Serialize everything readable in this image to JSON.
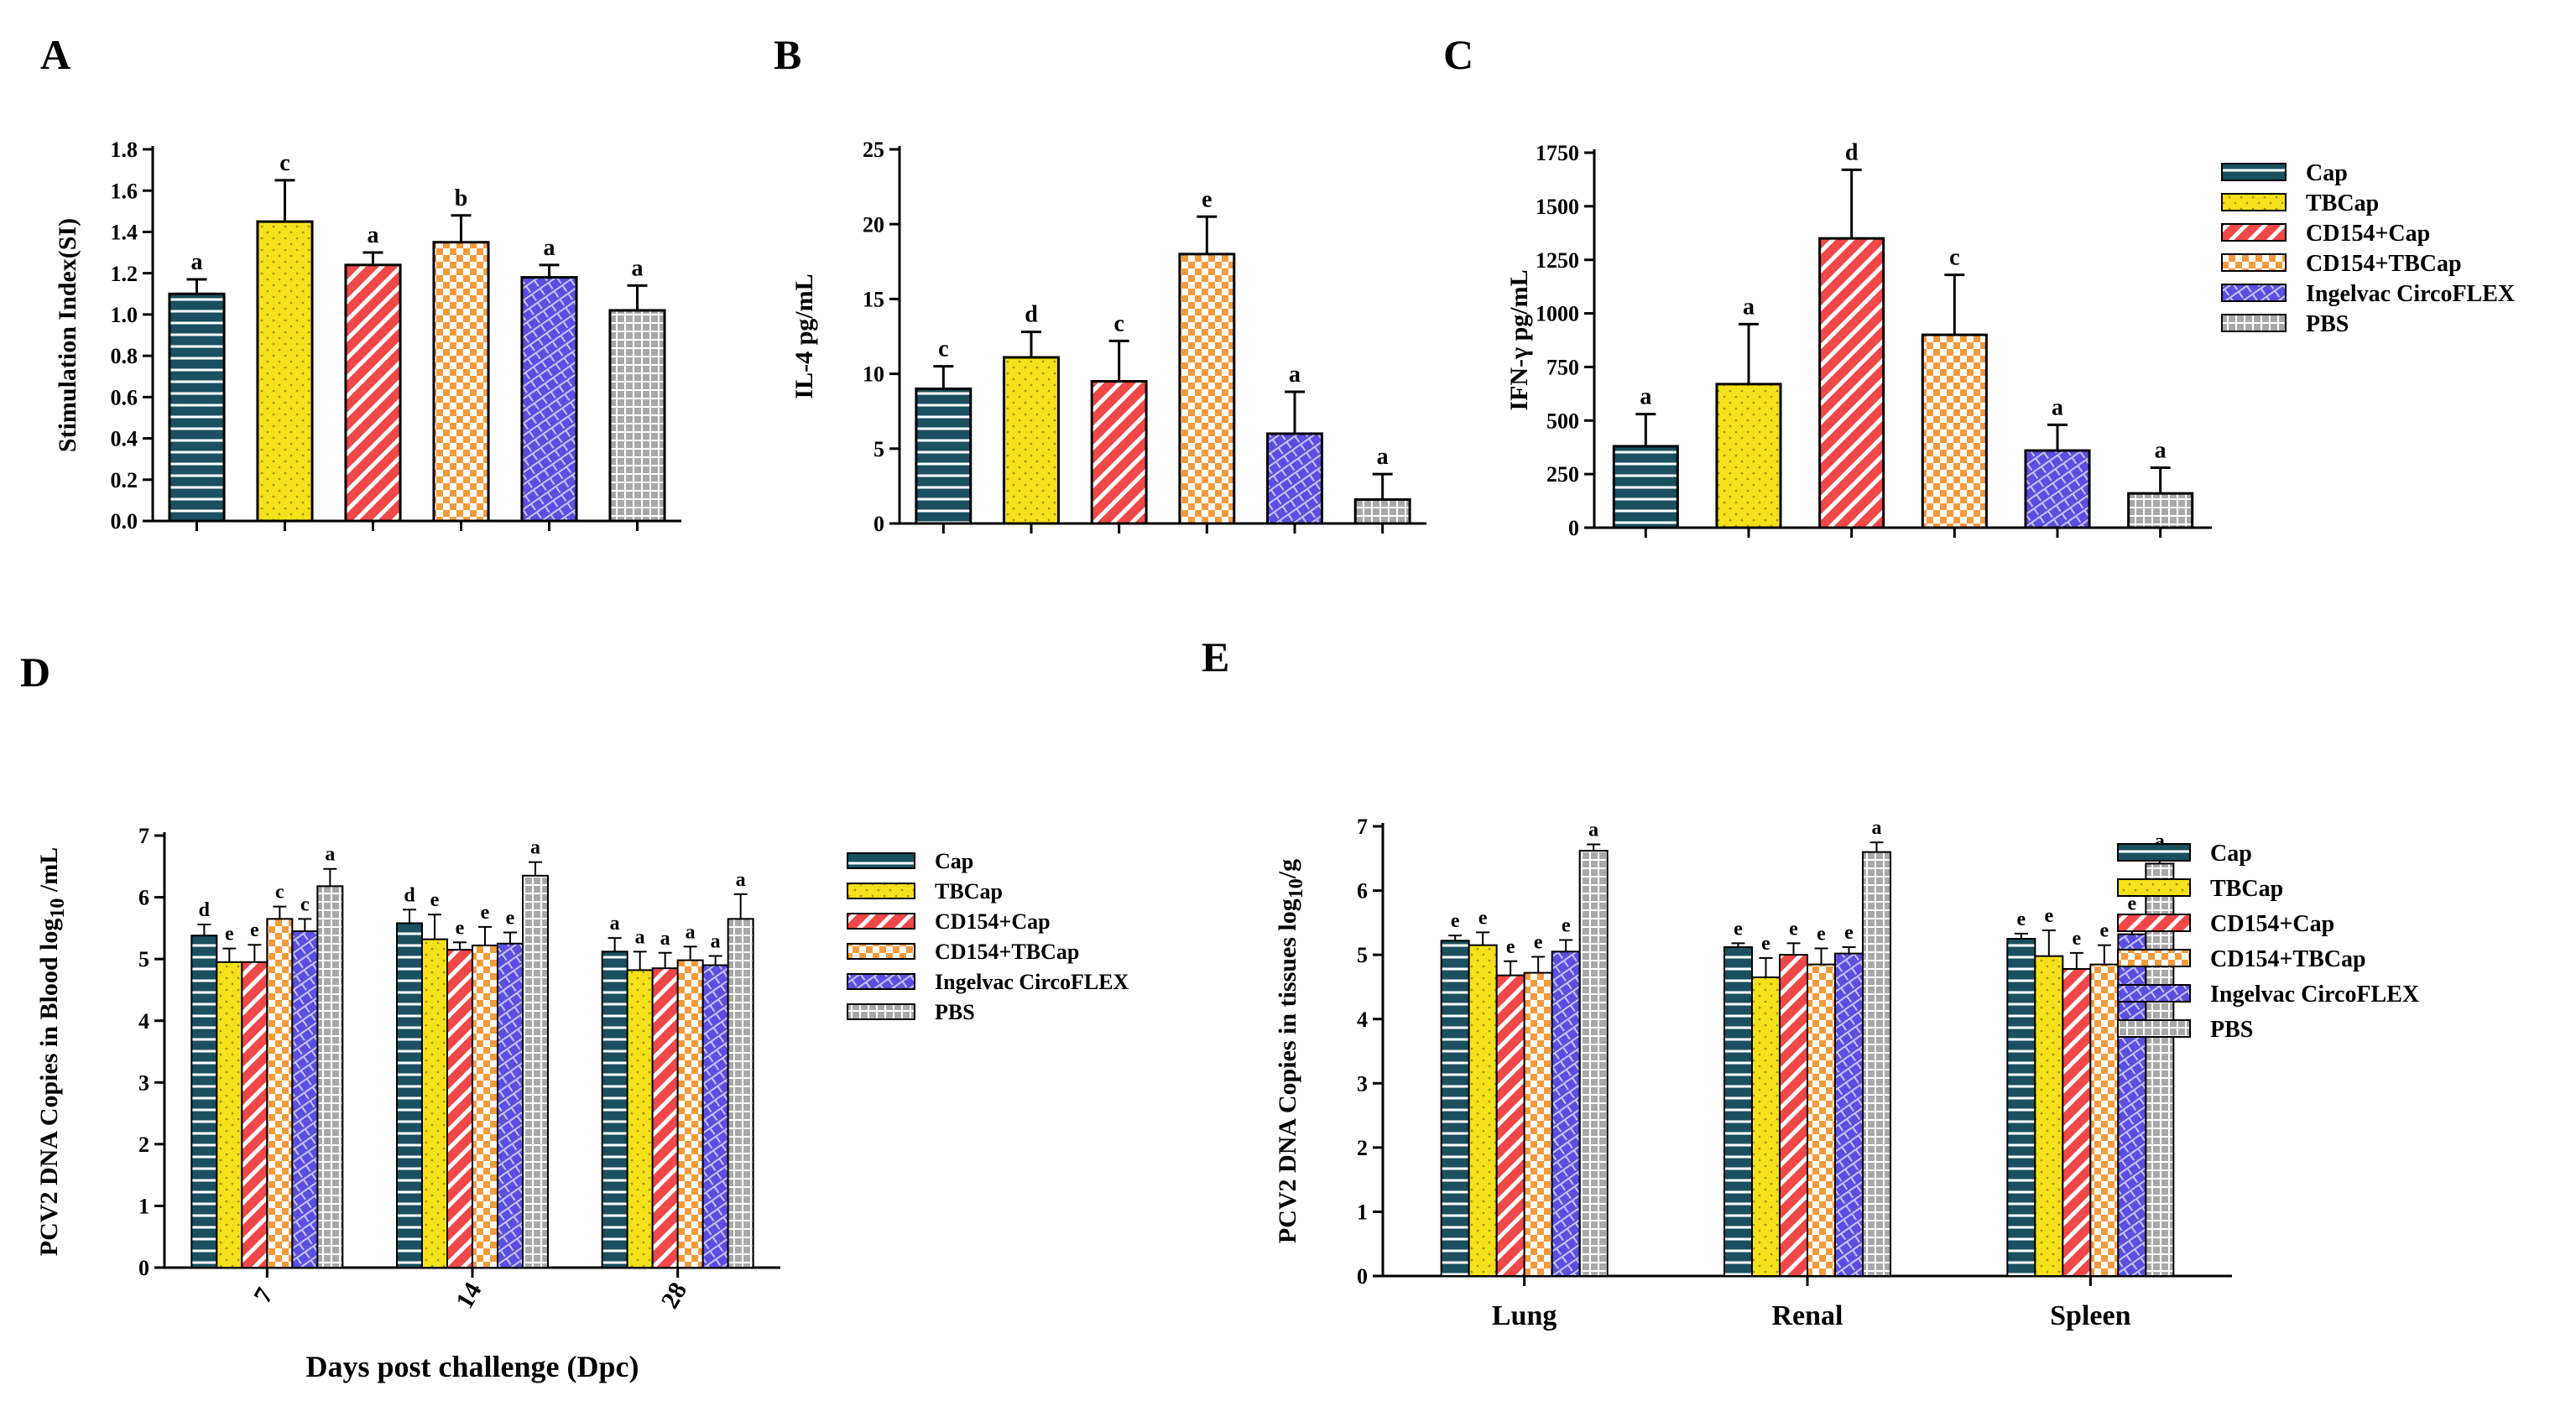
{
  "colors": {
    "Cap": "#1a5060",
    "TBCap": "#f5e11a",
    "CD154+Cap": "#f04848",
    "CD154+TBCap": "#f59a3a",
    "Ingelvac CircoFLEX": "#5a4fe0",
    "PBS": "#a8a8a8"
  },
  "chart_data": [
    {
      "panel": "A",
      "type": "bar",
      "ylabel": "Stimulation Index(SI)",
      "ylim": [
        0,
        1.8
      ],
      "yticks": [
        "0.0",
        "0.2",
        "0.4",
        "0.6",
        "0.8",
        "1.0",
        "1.2",
        "1.4",
        "1.6",
        "1.8"
      ],
      "categories": [
        "Cap",
        "TBCap",
        "CD154+Cap",
        "CD154+TBCap",
        "Ingelvac CircoFLEX",
        "PBS"
      ],
      "values": [
        1.1,
        1.45,
        1.24,
        1.35,
        1.18,
        1.02
      ],
      "errors": [
        0.07,
        0.2,
        0.06,
        0.13,
        0.06,
        0.12
      ],
      "letters": [
        "a",
        "c",
        "a",
        "b",
        "a",
        "a"
      ]
    },
    {
      "panel": "B",
      "type": "bar",
      "ylabel": "IL-4  pg/mL",
      "ylim": [
        0,
        25
      ],
      "yticks": [
        "0",
        "5",
        "10",
        "15",
        "20",
        "25"
      ],
      "categories": [
        "Cap",
        "TBCap",
        "CD154+Cap",
        "CD154+TBCap",
        "Ingelvac CircoFLEX",
        "PBS"
      ],
      "values": [
        9.0,
        11.1,
        9.5,
        18.0,
        6.0,
        1.6
      ],
      "errors": [
        1.5,
        1.7,
        2.7,
        2.5,
        2.8,
        1.7
      ],
      "letters": [
        "c",
        "d",
        "c",
        "e",
        "a",
        "a"
      ]
    },
    {
      "panel": "C",
      "type": "bar",
      "ylabel": "IFN-γ  pg/mL",
      "ylim": [
        0,
        1750
      ],
      "yticks": [
        "0",
        "250",
        "500",
        "750",
        "1000",
        "1250",
        "1500",
        "1750"
      ],
      "categories": [
        "Cap",
        "TBCap",
        "CD154+Cap",
        "CD154+TBCap",
        "Ingelvac CircoFLEX",
        "PBS"
      ],
      "values": [
        380,
        670,
        1350,
        900,
        360,
        160
      ],
      "errors": [
        150,
        280,
        320,
        280,
        120,
        120
      ],
      "letters": [
        "a",
        "a",
        "d",
        "c",
        "a",
        "a"
      ]
    },
    {
      "panel": "D",
      "type": "bar",
      "ylabel": "PCV2 DNA Copies in Blood  log",
      "ylabel_sub": "10",
      "ylabel_tail": " /mL",
      "xlabel": "Days post challenge (Dpc)",
      "ylim": [
        0,
        7
      ],
      "yticks": [
        "0",
        "1",
        "2",
        "3",
        "4",
        "5",
        "6",
        "7"
      ],
      "categories": [
        "7",
        "14",
        "28"
      ],
      "series": [
        {
          "name": "Cap",
          "values": [
            5.38,
            5.58,
            5.12
          ],
          "errors": [
            0.18,
            0.22,
            0.22
          ],
          "letters": [
            "d",
            "d",
            "a"
          ]
        },
        {
          "name": "TBCap",
          "values": [
            4.95,
            5.32,
            4.82
          ],
          "errors": [
            0.22,
            0.4,
            0.3
          ],
          "letters": [
            "e",
            "e",
            "a"
          ]
        },
        {
          "name": "CD154+Cap",
          "values": [
            4.95,
            5.15,
            4.85
          ],
          "errors": [
            0.28,
            0.12,
            0.25
          ],
          "letters": [
            "e",
            "e",
            "a"
          ]
        },
        {
          "name": "CD154+TBCap",
          "values": [
            5.65,
            5.22,
            4.98
          ],
          "errors": [
            0.2,
            0.3,
            0.22
          ],
          "letters": [
            "c",
            "e",
            "a"
          ]
        },
        {
          "name": "Ingelvac CircoFLEX",
          "values": [
            5.45,
            5.25,
            4.9
          ],
          "errors": [
            0.2,
            0.18,
            0.15
          ],
          "letters": [
            "c",
            "e",
            "a"
          ]
        },
        {
          "name": "PBS",
          "values": [
            6.18,
            6.35,
            5.65
          ],
          "errors": [
            0.28,
            0.22,
            0.4
          ],
          "letters": [
            "a",
            "a",
            "a"
          ]
        }
      ]
    },
    {
      "panel": "E",
      "type": "bar",
      "ylabel": "PCV2 DNA Copies in tissues  log",
      "ylabel_sub": "10",
      "ylabel_tail": "/g",
      "ylim": [
        0,
        7
      ],
      "yticks": [
        "0",
        "1",
        "2",
        "3",
        "4",
        "5",
        "6",
        "7"
      ],
      "categories": [
        "Lung",
        "Renal",
        "Spleen"
      ],
      "series": [
        {
          "name": "Cap",
          "values": [
            5.22,
            5.12,
            5.25
          ],
          "errors": [
            0.08,
            0.06,
            0.08
          ],
          "letters": [
            "e",
            "e",
            "e"
          ]
        },
        {
          "name": "TBCap",
          "values": [
            5.15,
            4.65,
            4.98
          ],
          "errors": [
            0.2,
            0.3,
            0.4
          ],
          "letters": [
            "e",
            "e",
            "e"
          ]
        },
        {
          "name": "CD154+Cap",
          "values": [
            4.68,
            5.0,
            4.78
          ],
          "errors": [
            0.22,
            0.18,
            0.25
          ],
          "letters": [
            "e",
            "e",
            "e"
          ]
        },
        {
          "name": "CD154+TBCap",
          "values": [
            4.72,
            4.85,
            4.85
          ],
          "errors": [
            0.25,
            0.25,
            0.3
          ],
          "letters": [
            "e",
            "e",
            "e"
          ]
        },
        {
          "name": "Ingelvac CircoFLEX",
          "values": [
            5.05,
            5.02,
            5.32
          ],
          "errors": [
            0.18,
            0.1,
            0.25
          ],
          "letters": [
            "e",
            "e",
            "e"
          ]
        },
        {
          "name": "PBS",
          "values": [
            6.62,
            6.6,
            6.42
          ],
          "errors": [
            0.1,
            0.15,
            0.12
          ],
          "letters": [
            "a",
            "a",
            "a"
          ]
        }
      ]
    }
  ],
  "legends": {
    "top": [
      "Cap",
      "TBCap",
      "CD154+Cap",
      "CD154+TBCap",
      "Ingelvac CircoFLEX",
      "PBS"
    ],
    "d": [
      "Cap",
      "TBCap",
      "CD154+Cap",
      "CD154+TBCap",
      "Ingelvac CircoFLEX",
      "PBS"
    ],
    "e": [
      "Cap",
      "TBCap",
      "CD154+Cap",
      "CD154+TBCap",
      "Ingelvac CircoFLEX",
      "PBS"
    ]
  }
}
